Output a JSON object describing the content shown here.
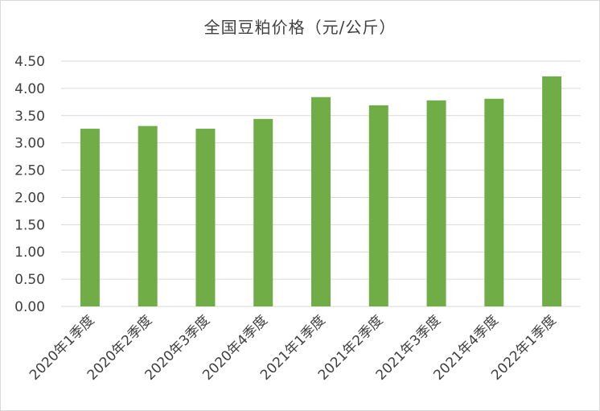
{
  "chart_data": {
    "type": "bar",
    "title": "全国豆粕价格（元/公斤）",
    "categories": [
      "2020年1季度",
      "2020年2季度",
      "2020年3季度",
      "2020年4季度",
      "2021年1季度",
      "2021年2季度",
      "2021年3季度",
      "2021年4季度",
      "2022年1季度"
    ],
    "values": [
      3.26,
      3.31,
      3.26,
      3.44,
      3.84,
      3.69,
      3.78,
      3.81,
      4.22
    ],
    "ylim": [
      0,
      4.5
    ],
    "yticks": [
      "0.00",
      "0.50",
      "1.00",
      "1.50",
      "2.00",
      "2.50",
      "3.00",
      "3.50",
      "4.00",
      "4.50"
    ],
    "xlabel": "",
    "ylabel": "",
    "grid": true,
    "legend": "none",
    "bar_color": "#70ad47"
  }
}
